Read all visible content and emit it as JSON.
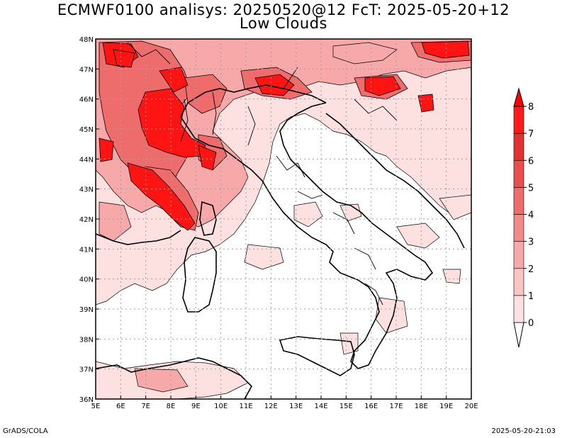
{
  "title": {
    "line1": "ECMWF0100 analisys: 20250520@12 FcT: 2025-05-20+12",
    "line2": "Low Clouds"
  },
  "footer": {
    "left": "GrADS/COLA",
    "right": "2025-05-20-21:03"
  },
  "map": {
    "lon_labels": [
      "5E",
      "6E",
      "7E",
      "8E",
      "9E",
      "10E",
      "11E",
      "12E",
      "13E",
      "14E",
      "15E",
      "16E",
      "17E",
      "18E",
      "19E",
      "20E"
    ],
    "lat_labels": [
      "36N",
      "37N",
      "38N",
      "39N",
      "40N",
      "41N",
      "42N",
      "43N",
      "44N",
      "45N",
      "46N",
      "47N",
      "48N"
    ],
    "lon_range": [
      5,
      20
    ],
    "lat_range": [
      36,
      48
    ],
    "grid": "dotted",
    "region": "Italy and surrounding seas"
  },
  "colorbar": {
    "levels": [
      "0",
      "1",
      "2",
      "3",
      "4",
      "5",
      "6",
      "7",
      "8"
    ],
    "colors": [
      "#ffffff",
      "#fde0e0",
      "#fbc4c4",
      "#f7a8a8",
      "#f38a8a",
      "#ee6c6c",
      "#ea4e4e",
      "#e43030",
      "#ff1a1a",
      "#ff0000"
    ]
  },
  "colors": {
    "outline": "#000000",
    "grid": "#a0a0a0"
  }
}
